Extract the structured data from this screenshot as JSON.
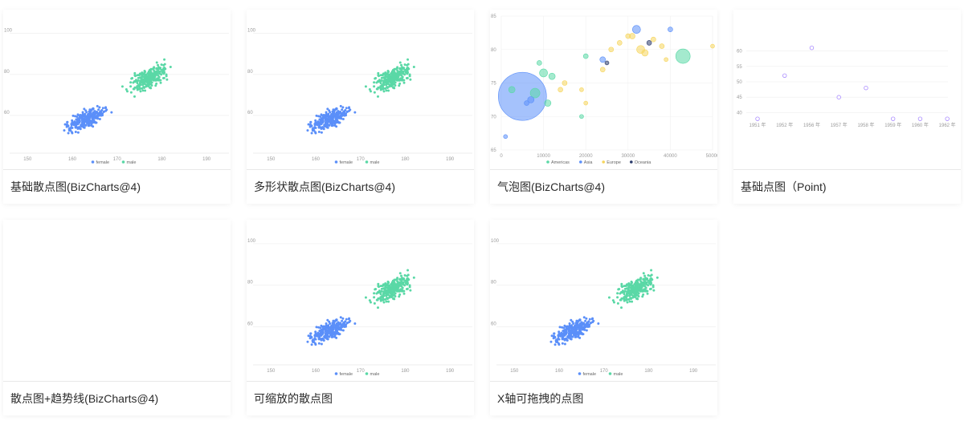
{
  "cards": [
    {
      "title": "基础散点图(BizCharts@4)",
      "thumb": "scatter"
    },
    {
      "title": "多形状散点图(BizCharts@4)",
      "thumb": "scatter"
    },
    {
      "title": "气泡图(BizCharts@4)",
      "thumb": "bubble"
    },
    {
      "title": "基础点图（Point)",
      "thumb": "point"
    },
    {
      "title": "散点图+趋势线(BizCharts@4)",
      "thumb": "blank"
    },
    {
      "title": "可缩放的散点图",
      "thumb": "scatter"
    },
    {
      "title": "X轴可拖拽的点图",
      "thumb": "scatter"
    }
  ],
  "scatter": {
    "x_ticks": [
      "150",
      "160",
      "170",
      "180",
      "190"
    ],
    "y_ticks": [
      "60",
      "80",
      "100"
    ],
    "legend": [
      "female",
      "male"
    ],
    "colors": {
      "female": "#5b8ff9",
      "male": "#5ad8a6"
    }
  },
  "bubble": {
    "x_ticks": [
      "0",
      "10000",
      "20000",
      "30000",
      "40000",
      "50000"
    ],
    "y_ticks": [
      "65",
      "70",
      "75",
      "80",
      "85"
    ],
    "legend": [
      "Americas",
      "Asia",
      "Europe",
      "Oceania"
    ],
    "colors": {
      "Americas": "#5ad8a6",
      "Asia": "#5b8ff9",
      "Europe": "#f6d55c",
      "Oceania": "#2a3a6b"
    }
  },
  "point": {
    "x_ticks": [
      "1951 年",
      "1952 年",
      "1956 年",
      "1957 年",
      "1958 年",
      "1959 年",
      "1960 年",
      "1962 年"
    ],
    "y_ticks": [
      "40",
      "45",
      "50",
      "55",
      "60"
    ],
    "values": [
      38,
      52,
      61,
      45,
      48,
      38,
      38,
      38
    ],
    "color": "#a98bff"
  }
}
